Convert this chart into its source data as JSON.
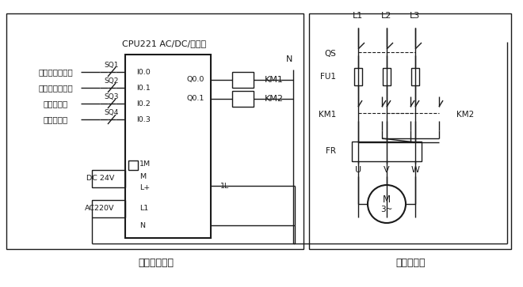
{
  "title": "CPU221 AC/DC/继电器",
  "bg_color": "#ffffff",
  "line_color": "#1a1a1a",
  "inputs": [
    "I0.0",
    "I0.1",
    "I0.2",
    "I0.3"
  ],
  "input_labels": [
    "入门传感器开关",
    "出门传感器开关",
    "下限位开关",
    "上限位开关"
  ],
  "input_sensors": [
    "SQ1",
    "SQ2",
    "SQ3",
    "SQ4"
  ],
  "outputs": [
    "Q0.0",
    "Q0.1"
  ],
  "output_labels": [
    "KM1",
    "KM2"
  ],
  "right_label": "1L",
  "control_label": "控制电路部分",
  "main_label": "主电路部分",
  "power_labels": [
    "L1",
    "L2",
    "L3"
  ],
  "motor_label": "M\n3~",
  "N_label": "N"
}
